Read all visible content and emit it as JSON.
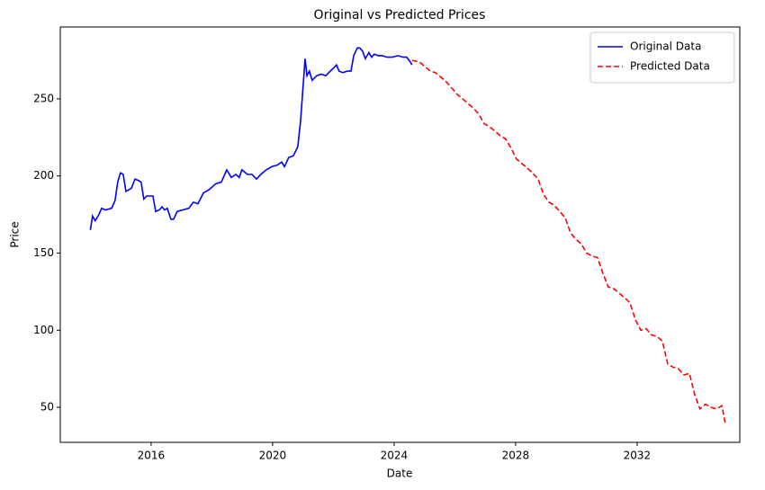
{
  "chart_data": {
    "type": "line",
    "title": "Original vs Predicted Prices",
    "x_label": "Date",
    "y_label": "Price",
    "xlim": [
      2013.01,
      2035.38
    ],
    "xticks": [
      2016,
      2020,
      2024,
      2028,
      2032
    ],
    "ylim": [
      27.3,
      296.6
    ],
    "yticks": [
      50,
      100,
      150,
      200,
      250
    ],
    "grid": false,
    "legend": "upper right",
    "series": [
      {
        "name": "Original Data",
        "color": "#0000ff",
        "linestyle": "solid",
        "x": [
          2014.0,
          2014.07,
          2014.16,
          2014.28,
          2014.37,
          2014.49,
          2014.7,
          2014.81,
          2014.9,
          2014.99,
          2015.08,
          2015.17,
          2015.35,
          2015.47,
          2015.59,
          2015.67,
          2015.76,
          2015.85,
          2016.06,
          2016.15,
          2016.27,
          2016.36,
          2016.44,
          2016.53,
          2016.65,
          2016.74,
          2016.86,
          2017.04,
          2017.24,
          2017.39,
          2017.54,
          2017.72,
          2017.9,
          2018.13,
          2018.31,
          2018.49,
          2018.64,
          2018.79,
          2018.9,
          2018.99,
          2019.17,
          2019.32,
          2019.47,
          2019.61,
          2019.79,
          2019.97,
          2020.15,
          2020.3,
          2020.39,
          2020.53,
          2020.68,
          2020.83,
          2020.92,
          2021.01,
          2021.07,
          2021.13,
          2021.21,
          2021.3,
          2021.45,
          2021.6,
          2021.75,
          2021.9,
          2022.01,
          2022.1,
          2022.19,
          2022.31,
          2022.46,
          2022.58,
          2022.67,
          2022.79,
          2022.87,
          2022.96,
          2023.05,
          2023.17,
          2023.26,
          2023.35,
          2023.47,
          2023.61,
          2023.76,
          2023.94,
          2024.12,
          2024.3,
          2024.41,
          2024.53,
          2024.59
        ],
        "values": [
          165,
          174,
          171,
          175,
          179,
          178,
          179,
          184,
          196,
          202,
          201,
          190,
          192,
          198,
          197,
          196,
          185,
          187,
          187,
          177,
          178,
          180,
          178,
          179,
          172,
          172,
          177,
          178,
          179,
          183,
          182,
          189,
          191,
          195,
          196,
          204,
          199,
          201,
          199,
          204,
          201,
          201,
          198,
          201,
          204,
          206,
          207,
          209,
          206,
          212,
          213,
          219,
          236,
          260,
          276,
          265,
          268,
          262,
          265,
          266,
          265,
          268,
          270,
          272,
          268,
          267,
          268,
          268,
          278,
          283,
          283,
          281,
          276,
          280,
          277,
          279,
          278,
          278,
          277,
          277,
          278,
          277,
          277,
          274,
          272
        ]
      },
      {
        "name": "Predicted Data",
        "color": "#ff0000",
        "linestyle": "dashed",
        "x": [
          2024.59,
          2024.83,
          2025.01,
          2025.19,
          2025.36,
          2025.54,
          2025.72,
          2025.9,
          2026.07,
          2026.25,
          2026.43,
          2026.61,
          2026.79,
          2026.96,
          2027.14,
          2027.32,
          2027.5,
          2027.67,
          2027.85,
          2028.03,
          2028.21,
          2028.39,
          2028.56,
          2028.74,
          2028.92,
          2029.1,
          2029.27,
          2029.45,
          2029.63,
          2029.81,
          2029.99,
          2030.16,
          2030.34,
          2030.52,
          2030.7,
          2030.87,
          2031.05,
          2031.23,
          2031.41,
          2031.59,
          2031.76,
          2031.94,
          2032.12,
          2032.3,
          2032.47,
          2032.65,
          2032.83,
          2033.01,
          2033.19,
          2033.36,
          2033.54,
          2033.72,
          2033.9,
          2034.07,
          2034.25,
          2034.43,
          2034.61,
          2034.79,
          2034.9
        ],
        "values": [
          275,
          274,
          271,
          268,
          267,
          264,
          261,
          257,
          253,
          250,
          247,
          244,
          240,
          234,
          232,
          229,
          226,
          224,
          218,
          211,
          208,
          205,
          202,
          198,
          188,
          183,
          181,
          177,
          173,
          163,
          159,
          156,
          150,
          148,
          147,
          137,
          128,
          127,
          124,
          121,
          118,
          107,
          100,
          101,
          97,
          96,
          93,
          78,
          76,
          75,
          71,
          72,
          58,
          49,
          52,
          50,
          49,
          51,
          40
        ]
      }
    ]
  }
}
